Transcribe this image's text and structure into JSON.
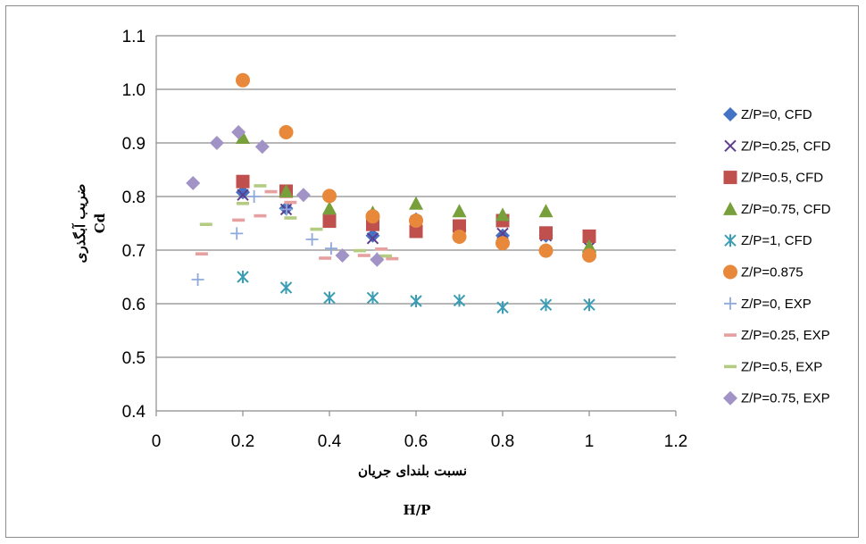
{
  "chart_data": {
    "type": "scatter",
    "xlabel_line1": "نسبت بلندای جریان",
    "xlabel_line2": "H/P",
    "ylabel_line1": "ضریب آبگذری",
    "ylabel_line2": "Cd",
    "xlim": [
      0,
      1.2
    ],
    "ylim": [
      0.4,
      1.1
    ],
    "xticks": [
      "0",
      "0.2",
      "0.4",
      "0.6",
      "0.8",
      "1",
      "1.2"
    ],
    "yticks": [
      "0.4",
      "0.5",
      "0.6",
      "0.7",
      "0.8",
      "0.9",
      "1.0",
      "1.1"
    ],
    "grid": "horizontal",
    "legend_position": "right",
    "series": [
      {
        "name": "Z/P=0, CFD",
        "marker": "diamond",
        "color": "#4472C4",
        "points": [
          [
            0.2,
            0.808
          ],
          [
            0.3,
            0.778
          ],
          [
            0.5,
            0.727
          ],
          [
            0.6,
            0.757
          ],
          [
            0.7,
            0.737
          ],
          [
            0.8,
            0.727
          ],
          [
            0.9,
            0.727
          ],
          [
            1.0,
            0.697
          ]
        ]
      },
      {
        "name": "Z/P=0.25, CFD",
        "marker": "x",
        "color": "#5E3D8F",
        "points": [
          [
            0.2,
            0.803
          ],
          [
            0.3,
            0.776
          ],
          [
            0.5,
            0.722
          ],
          [
            0.6,
            0.754
          ],
          [
            0.7,
            0.735
          ],
          [
            0.8,
            0.731
          ],
          [
            0.9,
            0.727
          ],
          [
            1.0,
            0.705
          ]
        ]
      },
      {
        "name": "Z/P=0.5, CFD",
        "marker": "square",
        "color": "#C0504D",
        "points": [
          [
            0.2,
            0.828
          ],
          [
            0.3,
            0.81
          ],
          [
            0.4,
            0.754
          ],
          [
            0.5,
            0.748
          ],
          [
            0.6,
            0.735
          ],
          [
            0.7,
            0.745
          ],
          [
            0.8,
            0.755
          ],
          [
            0.9,
            0.732
          ],
          [
            1.0,
            0.726
          ]
        ]
      },
      {
        "name": "Z/P=0.75, CFD",
        "marker": "triangle",
        "color": "#77A03A",
        "points": [
          [
            0.2,
            0.91
          ],
          [
            0.3,
            0.81
          ],
          [
            0.4,
            0.778
          ],
          [
            0.5,
            0.77
          ],
          [
            0.6,
            0.787
          ],
          [
            0.7,
            0.773
          ],
          [
            0.8,
            0.766
          ],
          [
            0.9,
            0.773
          ],
          [
            1.0,
            0.707
          ]
        ]
      },
      {
        "name": "Z/P=1, CFD",
        "marker": "asterisk",
        "color": "#3A9DB5",
        "points": [
          [
            0.2,
            0.65
          ],
          [
            0.3,
            0.63
          ],
          [
            0.4,
            0.611
          ],
          [
            0.5,
            0.611
          ],
          [
            0.6,
            0.605
          ],
          [
            0.7,
            0.606
          ],
          [
            0.8,
            0.593
          ],
          [
            0.9,
            0.598
          ],
          [
            1.0,
            0.598
          ]
        ]
      },
      {
        "name": "Z/P=0.875",
        "marker": "circle",
        "color": "#E8883A",
        "points": [
          [
            0.2,
            1.017
          ],
          [
            0.3,
            0.92
          ],
          [
            0.4,
            0.801
          ],
          [
            0.5,
            0.763
          ],
          [
            0.6,
            0.755
          ],
          [
            0.7,
            0.725
          ],
          [
            0.8,
            0.713
          ],
          [
            0.9,
            0.699
          ],
          [
            1.0,
            0.69
          ]
        ]
      },
      {
        "name": "Z/P=0, EXP",
        "marker": "plus",
        "color": "#8EA9DB",
        "points": [
          [
            0.096,
            0.645
          ],
          [
            0.186,
            0.731
          ],
          [
            0.226,
            0.8
          ],
          [
            0.301,
            0.776
          ],
          [
            0.36,
            0.72
          ],
          [
            0.404,
            0.703
          ],
          [
            0.51,
            0.684
          ]
        ]
      },
      {
        "name": "Z/P=0.25, EXP",
        "marker": "dash",
        "color": "#E6A0A0",
        "points": [
          [
            0.105,
            0.693
          ],
          [
            0.19,
            0.756
          ],
          [
            0.24,
            0.764
          ],
          [
            0.265,
            0.809
          ],
          [
            0.31,
            0.789
          ],
          [
            0.39,
            0.685
          ],
          [
            0.48,
            0.69
          ],
          [
            0.52,
            0.702
          ],
          [
            0.545,
            0.684
          ]
        ]
      },
      {
        "name": "Z/P=0.5, EXP",
        "marker": "dash",
        "color": "#B3CC82",
        "points": [
          [
            0.115,
            0.748
          ],
          [
            0.2,
            0.787
          ],
          [
            0.24,
            0.82
          ],
          [
            0.31,
            0.76
          ],
          [
            0.37,
            0.739
          ],
          [
            0.47,
            0.699
          ],
          [
            0.53,
            0.689
          ]
        ]
      },
      {
        "name": "Z/P=0.75, EXP",
        "marker": "diamond",
        "color": "#A193C6",
        "points": [
          [
            0.085,
            0.825
          ],
          [
            0.14,
            0.9
          ],
          [
            0.19,
            0.92
          ],
          [
            0.245,
            0.893
          ],
          [
            0.34,
            0.803
          ],
          [
            0.43,
            0.69
          ],
          [
            0.51,
            0.682
          ]
        ]
      }
    ]
  }
}
